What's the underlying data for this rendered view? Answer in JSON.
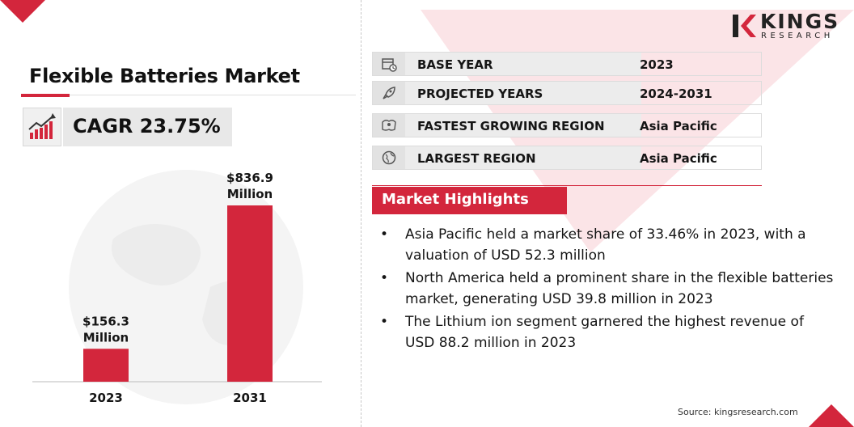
{
  "title": "Flexible Batteries Market",
  "cagr": "CAGR 23.75%",
  "brand": {
    "name_top": "KINGS",
    "name_bottom": "RESEARCH",
    "accent": "#d3263c"
  },
  "info_rows": [
    {
      "label": "BASE YEAR",
      "value": "2023",
      "icon": "calendar-clock-icon"
    },
    {
      "label": "PROJECTED YEARS",
      "value": "2024-2031",
      "icon": "rocket-icon"
    },
    {
      "label": "FASTEST GROWING REGION",
      "value": "Asia Pacific",
      "icon": "map-region-icon"
    },
    {
      "label": "LARGEST REGION",
      "value": "Asia Pacific",
      "icon": "globe-icon"
    }
  ],
  "highlights": {
    "heading": "Market Highlights",
    "items": [
      "Asia Pacific held a market share of 33.46% in 2023, with a valuation of USD 52.3 million",
      "North America held a prominent share in the flexible batteries market, generating USD 39.8 million in 2023",
      "The Lithium ion segment garnered the highest revenue of USD 88.2 million in 2023"
    ]
  },
  "source": "Source: kingsresearch.com",
  "chart_data": {
    "type": "bar",
    "categories": [
      "2023",
      "2031"
    ],
    "values": [
      156.3,
      836.9
    ],
    "data_labels": [
      [
        "$156.3",
        "Million"
      ],
      [
        "$836.9",
        "Million"
      ]
    ],
    "title": "",
    "xlabel": "",
    "ylabel": "",
    "ylim": [
      0,
      836.9
    ],
    "bar_color": "#d3263c",
    "grid": false
  }
}
